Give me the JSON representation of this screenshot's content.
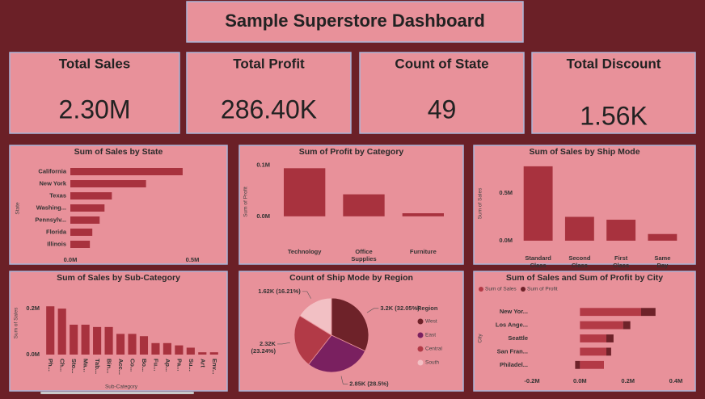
{
  "header": {
    "title": "Sample Superstore Dashboard"
  },
  "kpis": [
    {
      "label": "Total Sales",
      "value": "2.30M"
    },
    {
      "label": "Total Profit",
      "value": "286.40K"
    },
    {
      "label": "Count of State",
      "value": "49"
    },
    {
      "label": "Total Discount",
      "value": "1.56K"
    }
  ],
  "chart_data": [
    {
      "type": "bar",
      "horizontal": true,
      "title": "Sum of Sales by State",
      "ylabel": "State",
      "categories": [
        "California",
        "New York",
        "Texas",
        "Washing...",
        "Pennsylv...",
        "Florida",
        "Illinois"
      ],
      "values": [
        0.46,
        0.31,
        0.17,
        0.14,
        0.12,
        0.09,
        0.08
      ],
      "color": "#a8323e",
      "xlim": [
        0,
        0.5
      ],
      "xticks": [
        {
          "value": 0,
          "label": "0.0M"
        },
        {
          "value": 0.5,
          "label": "0.5M"
        }
      ]
    },
    {
      "type": "bar",
      "title": "Sum of Profit by Category",
      "ylabel": "Sum of Profit",
      "categories": [
        "Technology",
        "Office Supplies",
        "Furniture"
      ],
      "values": [
        0.094,
        0.043,
        0.006
      ],
      "color": "#a8323e",
      "ylim": [
        -0.035,
        0.115
      ],
      "yticks": [
        {
          "value": 0,
          "label": "0.0M"
        },
        {
          "value": 0.1,
          "label": "0.1M"
        }
      ]
    },
    {
      "type": "bar",
      "title": "Sum of Sales by Ship Mode",
      "ylabel": "Sum of Sales",
      "categories": [
        "Standard Class",
        "Second Class",
        "First Class",
        "Same Day"
      ],
      "values": [
        0.78,
        0.25,
        0.22,
        0.07
      ],
      "color": "#a8323e",
      "ylim": [
        0,
        0.83
      ],
      "yticks": [
        {
          "value": 0,
          "label": "0.0M"
        },
        {
          "value": 0.5,
          "label": "0.5M"
        }
      ]
    },
    {
      "type": "bar",
      "title": "Sum of Sales by Sub-Category",
      "ylabel": "Sum of Sales",
      "xlabel": "Sub-Category",
      "categories": [
        "Ph...",
        "Ch...",
        "Sto...",
        "Ma...",
        "Tab...",
        "Bin...",
        "Acc...",
        "Co...",
        "Bo...",
        "Fu...",
        "Ap...",
        "Pa...",
        "Su...",
        "Art",
        "Env..."
      ],
      "values": [
        0.21,
        0.2,
        0.13,
        0.13,
        0.12,
        0.12,
        0.09,
        0.09,
        0.08,
        0.05,
        0.05,
        0.04,
        0.03,
        0.01,
        0.01
      ],
      "color": "#a8323e",
      "ylim": [
        0,
        0.26
      ],
      "yticks": [
        {
          "value": 0,
          "label": "0.0M"
        },
        {
          "value": 0.2,
          "label": "0.2M"
        }
      ]
    },
    {
      "type": "pie",
      "title": "Count of Ship Mode by Region",
      "legend_title": "Region",
      "categories": [
        "West",
        "East",
        "Central",
        "South"
      ],
      "values": [
        3.2,
        2.85,
        2.32,
        1.62
      ],
      "value_labels": [
        "3.2K (32.05%)",
        "2.85K (28.5%)",
        "2.32K (23.24%)",
        "1.62K (16.21%)"
      ],
      "colors": [
        "#6e2229",
        "#7a2060",
        "#b23a47",
        "#f2c0c4"
      ]
    },
    {
      "type": "bar",
      "horizontal": true,
      "stacked": true,
      "title": "Sum of Sales and Sum of Profit by City",
      "ylabel": "City",
      "categories": [
        "New Yor...",
        "Los Ange...",
        "Seattle",
        "San Fran...",
        "Philadel..."
      ],
      "series": [
        {
          "name": "Sum of Sales",
          "color": "#b33a46",
          "values": [
            0.255,
            0.18,
            0.11,
            0.11,
            0.1
          ]
        },
        {
          "name": "Sum of Profit",
          "color": "#6e2229",
          "values": [
            0.06,
            0.03,
            0.03,
            0.02,
            -0.02
          ]
        }
      ],
      "xlim": [
        -0.2,
        0.4
      ],
      "xticks": [
        {
          "value": -0.2,
          "label": "-0.2M"
        },
        {
          "value": 0,
          "label": "0.0M"
        },
        {
          "value": 0.2,
          "label": "0.2M"
        },
        {
          "value": 0.4,
          "label": "0.4M"
        }
      ]
    }
  ]
}
